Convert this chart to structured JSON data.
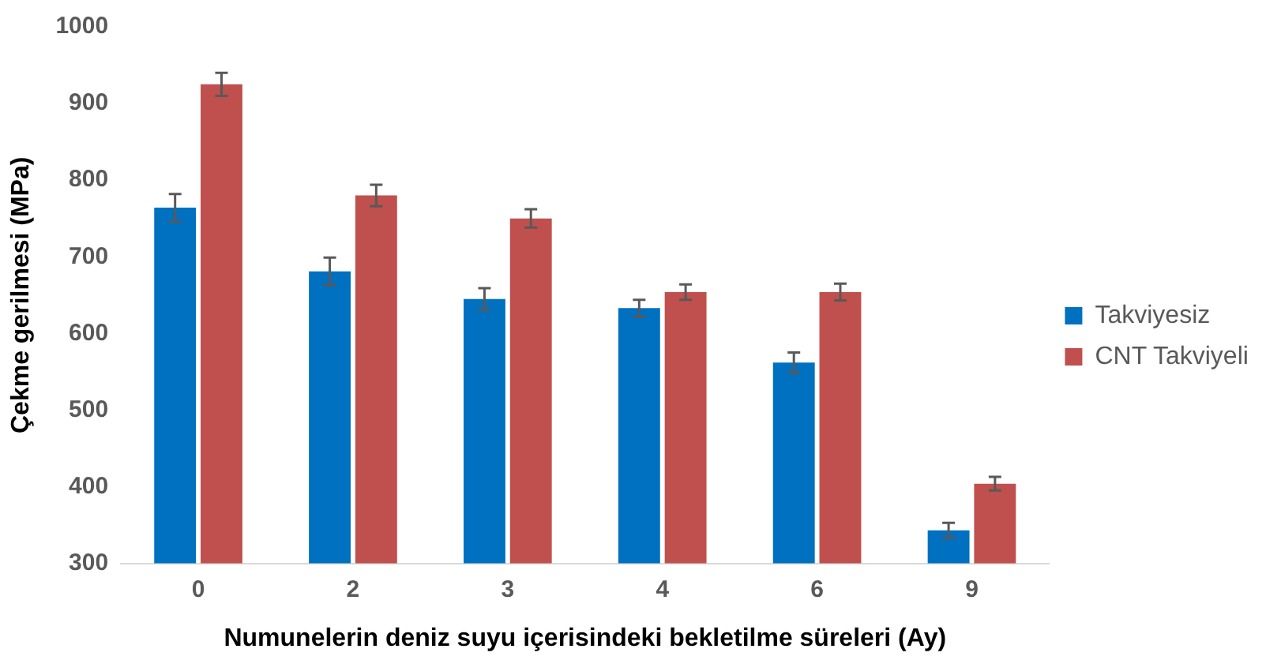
{
  "chart_data": {
    "type": "bar",
    "xlabel": "Numunelerin deniz suyu içerisindeki bekletilme süreleri (Ay)",
    "ylabel": "Çekme gerilmesi (MPa)",
    "categories": [
      "0",
      "2",
      "3",
      "4",
      "6",
      "9"
    ],
    "series": [
      {
        "name": "Takviyesiz",
        "color": "#0070c0",
        "values": [
          764,
          681,
          645,
          633,
          562,
          343
        ],
        "errors": [
          18,
          18,
          14,
          11,
          13,
          10
        ]
      },
      {
        "name": "CNT Takviyeli",
        "color": "#c0504d",
        "values": [
          925,
          780,
          750,
          654,
          654,
          404
        ],
        "errors": [
          15,
          14,
          12,
          10,
          11,
          9
        ]
      }
    ],
    "ylim": [
      300,
      1000
    ],
    "yticks": [
      300,
      400,
      500,
      600,
      700,
      800,
      900,
      1000
    ],
    "grid": false,
    "legend": "right"
  }
}
